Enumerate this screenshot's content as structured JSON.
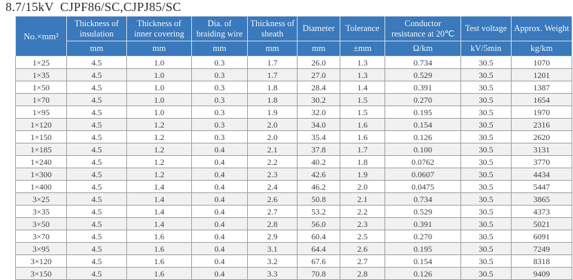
{
  "title": "8.7/15kV  CJPF86/SC,CJPJ85/SC",
  "colors": {
    "header_bg": "#3a79bb",
    "header_text": "#f2f6fb",
    "row_alt_bg": "#f1f1f1",
    "border": "#9c9c9c",
    "body_text": "#3f3f3f",
    "title_text": "#2b2b2b"
  },
  "table": {
    "corner_label": "No.×mm²",
    "columns": [
      {
        "label": "Thickness of insulation",
        "unit": "mm"
      },
      {
        "label": "Thickness of inner covering",
        "unit": "mm"
      },
      {
        "label": "Dia. of braiding wire",
        "unit": "mm"
      },
      {
        "label": "Thickness of sheath",
        "unit": "mm"
      },
      {
        "label": "Diameter",
        "unit": "mm"
      },
      {
        "label": "Tolerance",
        "unit": "±mm"
      },
      {
        "label": "Conductor resistance at 20℃",
        "unit": "Ω/km"
      },
      {
        "label": "Test voltage",
        "unit": "kV/5min"
      },
      {
        "label": "Approx. Weight",
        "unit": "kg/km"
      }
    ],
    "rows": [
      [
        "1×25",
        "4.5",
        "1.0",
        "0.3",
        "1.7",
        "26.0",
        "1.3",
        "0.734",
        "30.5",
        "1070"
      ],
      [
        "1×35",
        "4.5",
        "1.0",
        "0.3",
        "1.7",
        "27.0",
        "1.3",
        "0.529",
        "30.5",
        "1201"
      ],
      [
        "1×50",
        "4.5",
        "1.0",
        "0.3",
        "1.8",
        "28.4",
        "1.4",
        "0.391",
        "30.5",
        "1387"
      ],
      [
        "1×70",
        "4.5",
        "1.0",
        "0.3",
        "1.8",
        "30.2",
        "1.5",
        "0.270",
        "30.5",
        "1654"
      ],
      [
        "1×95",
        "4.5",
        "1.0",
        "0.3",
        "1.9",
        "32.0",
        "1.5",
        "0.195",
        "30.5",
        "1970"
      ],
      [
        "1×120",
        "4.5",
        "1.2",
        "0.3",
        "2.0",
        "34.0",
        "1.6",
        "0.154",
        "30.5",
        "2316"
      ],
      [
        "1×150",
        "4.5",
        "1.2",
        "0.3",
        "2.0",
        "35.4",
        "1.6",
        "0.126",
        "30.5",
        "2620"
      ],
      [
        "1×185",
        "4.5",
        "1.2",
        "0.4",
        "2.1",
        "37.8",
        "1.7",
        "0.100",
        "30.5",
        "3131"
      ],
      [
        "1×240",
        "4.5",
        "1.2",
        "0.4",
        "2.2",
        "40.2",
        "1.8",
        "0.0762",
        "30.5",
        "3770"
      ],
      [
        "1×300",
        "4.5",
        "1.2",
        "0.4",
        "2.3",
        "42.6",
        "1.9",
        "0.0607",
        "30.5",
        "4434"
      ],
      [
        "1×400",
        "4.5",
        "1.4",
        "0.4",
        "2.4",
        "46.2",
        "2.0",
        "0.0475",
        "30.5",
        "5447"
      ],
      [
        "3×25",
        "4.5",
        "1.4",
        "0.4",
        "2.6",
        "50.8",
        "2.1",
        "0.734",
        "30.5",
        "3865"
      ],
      [
        "3×35",
        "4.5",
        "1.4",
        "0.4",
        "2.7",
        "53.2",
        "2.2",
        "0.529",
        "30.5",
        "4373"
      ],
      [
        "3×50",
        "4.5",
        "1.4",
        "0.4",
        "2.8",
        "56.0",
        "2.3",
        "0.391",
        "30.5",
        "5021"
      ],
      [
        "3×70",
        "4.5",
        "1.6",
        "0.4",
        "2.9",
        "60.4",
        "2.5",
        "0.270",
        "30.5",
        "6091"
      ],
      [
        "3×95",
        "4.5",
        "1.6",
        "0.4",
        "3.1",
        "64.4",
        "2.6",
        "0.195",
        "30.5",
        "7249"
      ],
      [
        "3×120",
        "4.5",
        "1.6",
        "0.4",
        "3.2",
        "67.6",
        "2.7",
        "0.154",
        "30.5",
        "8318"
      ],
      [
        "3×150",
        "4.5",
        "1.6",
        "0.4",
        "3.3",
        "70.8",
        "2.8",
        "0.126",
        "30.5",
        "9409"
      ]
    ]
  }
}
